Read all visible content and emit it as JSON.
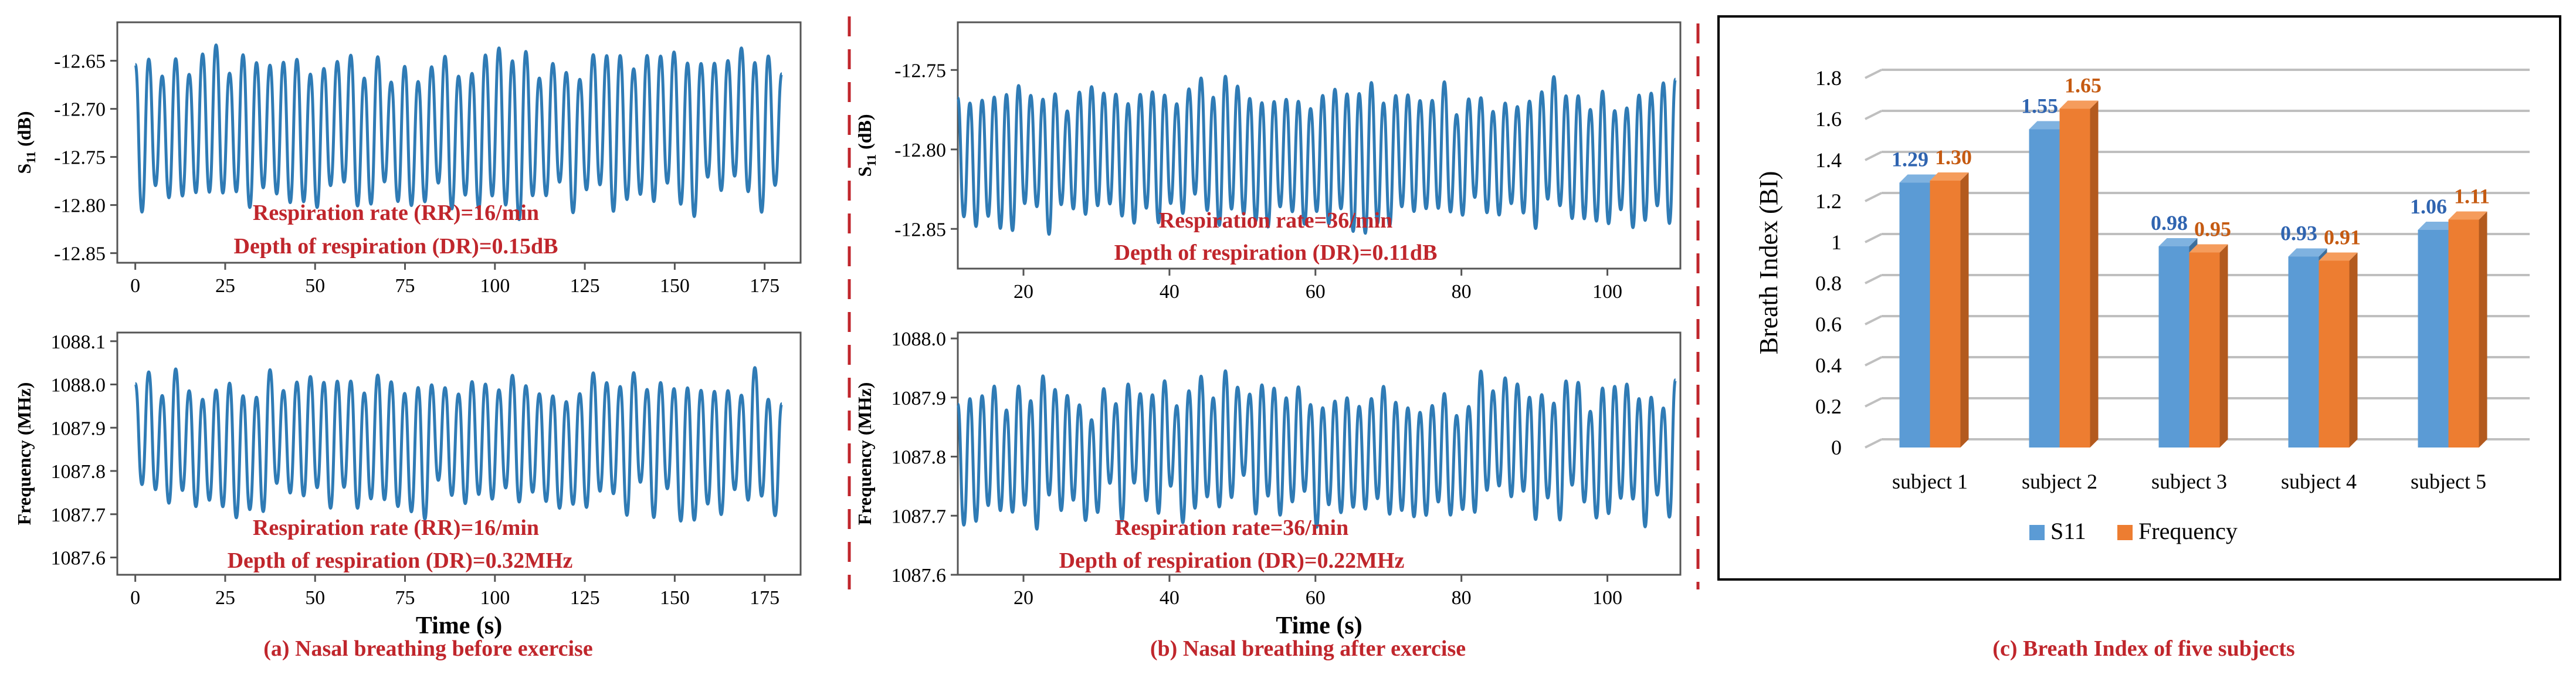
{
  "colors": {
    "line": "#2f7bb5",
    "annotation": "#c0262c",
    "s11_bar": "#5b9bd5",
    "freq_bar": "#ed7d31",
    "axis": "#555555"
  },
  "captions": [
    "(a) Nasal breathing before exercise",
    "(b) Nasal breathing after exercise",
    "(c) Breath Index of five subjects"
  ],
  "chart_data": [
    {
      "id": "a_top",
      "type": "line",
      "series_name": "S11 before exercise",
      "ylabel_main": "S",
      "ylabel_sub": "11",
      "ylabel_unit": " (dB)",
      "xlabel": "",
      "xlim": [
        -5,
        185
      ],
      "ylim": [
        -12.86,
        -12.61
      ],
      "yticks": [
        "-12.65",
        "-12.70",
        "-12.75",
        "-12.80",
        "-12.85"
      ],
      "ytick_values": [
        -12.65,
        -12.7,
        -12.75,
        -12.8,
        -12.85
      ],
      "xticks": [
        "0",
        "25",
        "50",
        "75",
        "100",
        "125",
        "150",
        "175"
      ],
      "xtick_values": [
        0,
        25,
        50,
        75,
        100,
        125,
        150,
        175
      ],
      "signal": {
        "x_start": 0,
        "x_end": 180,
        "cycles_per_unit": 0.267,
        "center": -12.725,
        "amplitude": 0.085,
        "noise": 0.012
      },
      "annotations": [
        "Respiration rate (RR)=16/min",
        "Depth of respiration (DR)=0.15dB"
      ]
    },
    {
      "id": "a_bottom",
      "type": "line",
      "series_name": "Frequency before exercise",
      "ylabel_main": "Frequency (MHz)",
      "ylabel_sub": "",
      "ylabel_unit": "",
      "xlabel": "Time (s)",
      "xlim": [
        -5,
        185
      ],
      "ylim": [
        1087.56,
        1088.12
      ],
      "yticks": [
        "1088.1",
        "1088.0",
        "1087.9",
        "1087.8",
        "1087.7",
        "1087.6"
      ],
      "ytick_values": [
        1088.1,
        1088.0,
        1087.9,
        1087.8,
        1087.7,
        1087.6
      ],
      "xticks": [
        "0",
        "25",
        "50",
        "75",
        "100",
        "125",
        "150",
        "175"
      ],
      "xtick_values": [
        0,
        25,
        50,
        75,
        100,
        125,
        150,
        175
      ],
      "signal": {
        "x_start": 0,
        "x_end": 180,
        "cycles_per_unit": 0.267,
        "center": 1087.86,
        "amplitude": 0.16,
        "noise": 0.035
      },
      "annotations": [
        "Respiration rate (RR)=16/min",
        "Depth of respiration (DR)=0.32MHz"
      ]
    },
    {
      "id": "b_top",
      "type": "line",
      "series_name": "S11 after exercise",
      "ylabel_main": "S",
      "ylabel_sub": "11",
      "ylabel_unit": " (dB)",
      "xlabel": "",
      "xlim": [
        11,
        110
      ],
      "ylim": [
        -12.875,
        -12.72
      ],
      "yticks": [
        "-12.75",
        "-12.80",
        "-12.85"
      ],
      "ytick_values": [
        -12.75,
        -12.8,
        -12.85
      ],
      "xticks": [
        "20",
        "40",
        "60",
        "80",
        "100"
      ],
      "xtick_values": [
        20,
        40,
        60,
        80,
        100
      ],
      "signal": {
        "x_start": 11,
        "x_end": 110,
        "cycles_per_unit": 0.6,
        "center": -12.805,
        "amplitude": 0.045,
        "noise": 0.008
      },
      "annotations": [
        "Respiration rate=36/min",
        "Depth of respiration (DR)=0.11dB"
      ]
    },
    {
      "id": "b_bottom",
      "type": "line",
      "series_name": "Frequency after exercise",
      "ylabel_main": "Frequency (MHz)",
      "ylabel_sub": "",
      "ylabel_unit": "",
      "xlabel": "Time (s)",
      "xlim": [
        11,
        110
      ],
      "ylim": [
        1087.6,
        1088.01
      ],
      "yticks": [
        "1088.0",
        "1087.9",
        "1087.8",
        "1087.7",
        "1087.6"
      ],
      "ytick_values": [
        1088.0,
        1087.9,
        1087.8,
        1087.7,
        1087.6
      ],
      "xticks": [
        "20",
        "40",
        "60",
        "80",
        "100"
      ],
      "xtick_values": [
        20,
        40,
        60,
        80,
        100
      ],
      "signal": {
        "x_start": 11,
        "x_end": 110,
        "cycles_per_unit": 0.6,
        "center": 1087.81,
        "amplitude": 0.11,
        "noise": 0.03
      },
      "annotations": [
        "Respiration rate=36/min",
        "Depth of respiration (DR)=0.22MHz"
      ]
    },
    {
      "id": "c",
      "type": "bar",
      "title": "",
      "ylabel": "Breath Index (BI)",
      "categories": [
        "subject 1",
        "subject 2",
        "subject 3",
        "subject 4",
        "subject 5"
      ],
      "series": [
        {
          "name": "S11",
          "values": [
            1.29,
            1.55,
            0.98,
            0.93,
            1.06
          ],
          "labels": [
            "1.29",
            "1.55",
            "0.98",
            "0.93",
            "1.06"
          ]
        },
        {
          "name": "Frequency",
          "values": [
            1.3,
            1.65,
            0.95,
            0.91,
            1.11
          ],
          "labels": [
            "1.30",
            "1.65",
            "0.95",
            "0.91",
            "1.11"
          ]
        }
      ],
      "ylim": [
        0,
        1.8
      ],
      "yticks": [
        "0",
        "0.2",
        "0.4",
        "0.6",
        "0.8",
        "1",
        "1.2",
        "1.4",
        "1.6",
        "1.8"
      ],
      "ytick_values": [
        0,
        0.2,
        0.4,
        0.6,
        0.8,
        1,
        1.2,
        1.4,
        1.6,
        1.8
      ],
      "legend": "bottom"
    }
  ]
}
